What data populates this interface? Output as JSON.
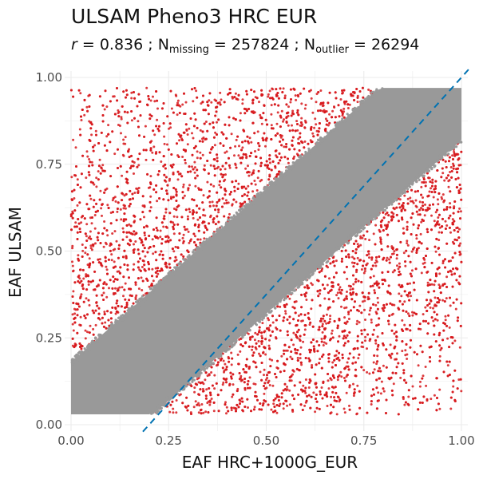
{
  "chart_data": {
    "type": "scatter",
    "title": "ULSAM Pheno3 HRC EUR",
    "subtitle": {
      "r_label": "r",
      "r_value": "0.836",
      "n_label": "N",
      "missing_sub": "missing",
      "missing_value": "257824",
      "outlier_sub": "outlier",
      "outlier_value": "26294"
    },
    "xlabel": "EAF HRC+1000G_EUR",
    "ylabel": "EAF ULSAM",
    "xlim": [
      0,
      1
    ],
    "ylim": [
      0,
      1
    ],
    "xticks": [
      "0.00",
      "0.25",
      "0.50",
      "0.75",
      "1.00"
    ],
    "yticks": [
      "0.00",
      "0.25",
      "0.50",
      "0.75",
      "1.00"
    ],
    "grid": true,
    "legend": "none",
    "maf_range": [
      0.03,
      0.97
    ],
    "reference_line": {
      "slope": 1.25,
      "intercept": -0.25,
      "style": "dashed"
    },
    "series": [
      {
        "role": "non-outlier",
        "color": "#999999",
        "band_center_slope": 1.0,
        "band_center_intercept": 0.0,
        "band_halfwidth": 0.18
      },
      {
        "role": "outlier",
        "color": "#d7191c",
        "density": "sparse scatter outside grey band"
      }
    ],
    "colors": {
      "ref_line": "#0072b2",
      "panel_grid": "#ebebeb"
    }
  }
}
